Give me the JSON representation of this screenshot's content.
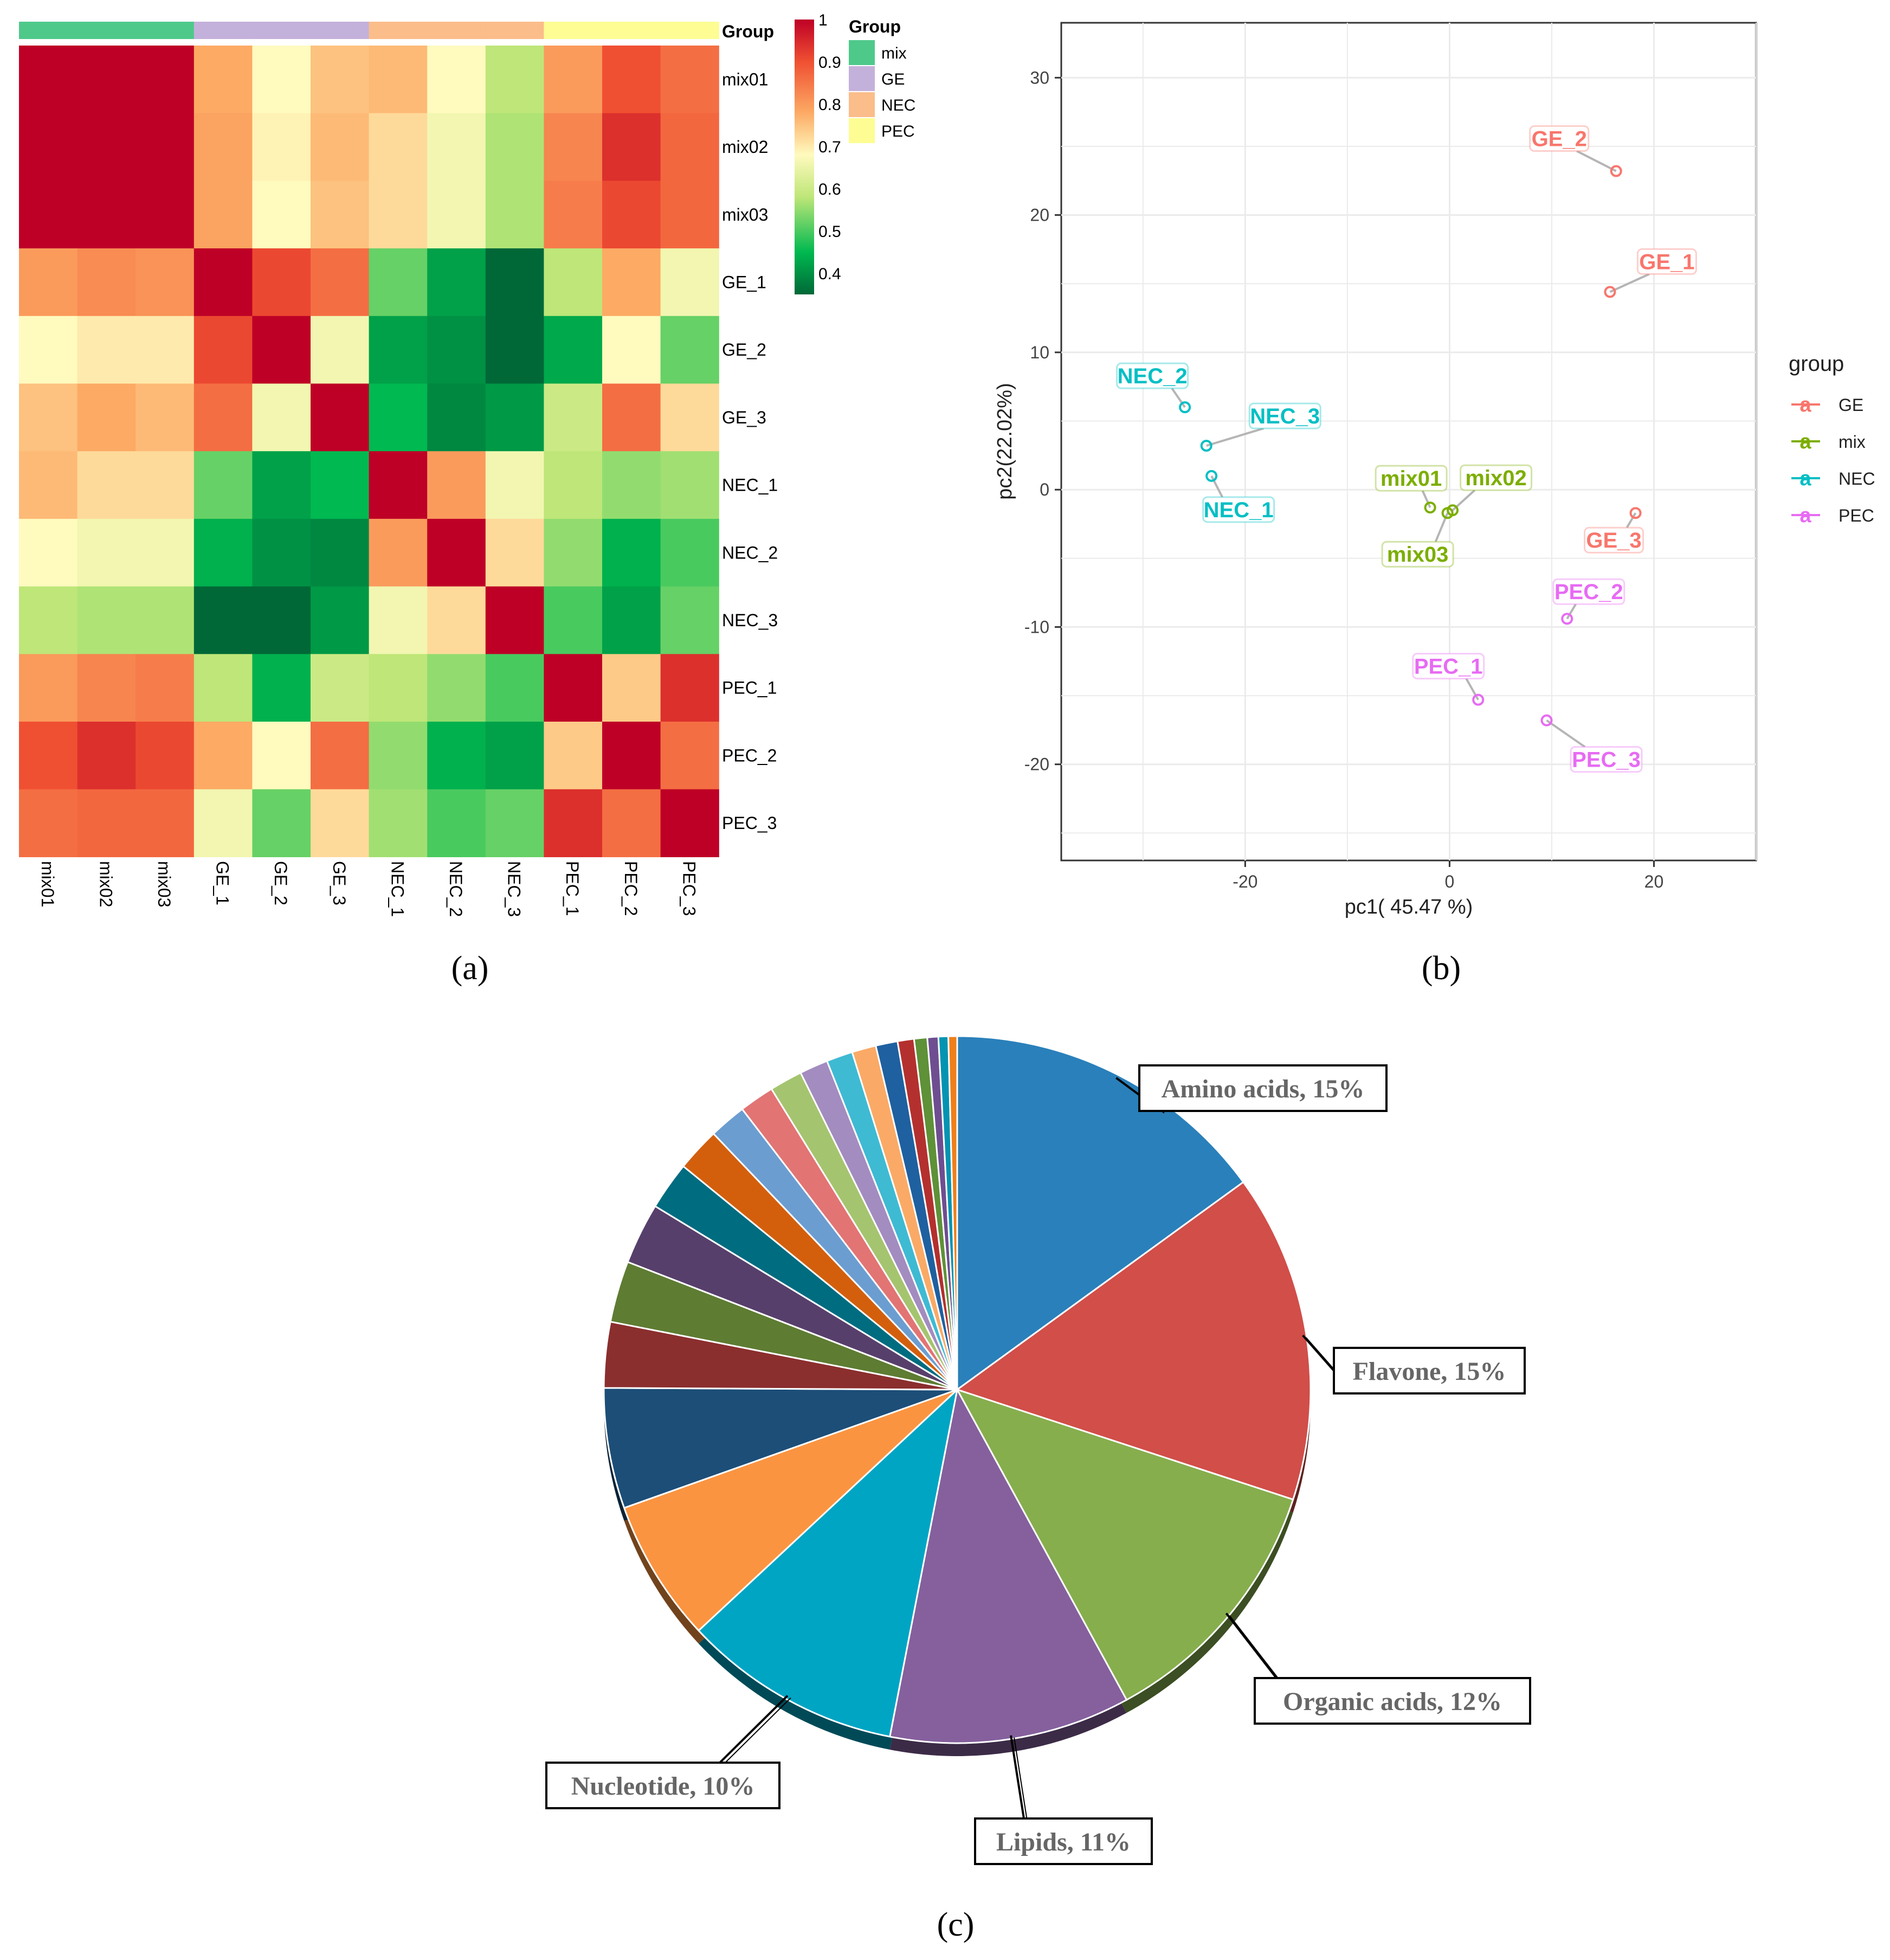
{
  "panel_labels": {
    "a": "(a)",
    "b": "(b)",
    "c": "(c)"
  },
  "colors": {
    "mix": "#4ec98a",
    "GE": "#c4b1db",
    "NEC": "#fbbd8a",
    "PEC": "#fdfd94",
    "pca_GE": "#f8766d",
    "pca_mix": "#7cae00",
    "pca_NEC": "#00bfc4",
    "pca_PEC": "#e76bf3"
  },
  "chart_data": [
    {
      "type": "heatmap",
      "panel": "a",
      "samples": [
        "mix01",
        "mix02",
        "mix03",
        "GE_1",
        "GE_2",
        "GE_3",
        "NEC_1",
        "NEC_2",
        "NEC_3",
        "PEC_1",
        "PEC_2",
        "PEC_3"
      ],
      "groups": [
        "mix",
        "mix",
        "mix",
        "GE",
        "GE",
        "GE",
        "NEC",
        "NEC",
        "NEC",
        "PEC",
        "PEC",
        "PEC"
      ],
      "annotation_title": "Group",
      "legend_title": "Group",
      "legend_entries": [
        "mix",
        "GE",
        "NEC",
        "PEC"
      ],
      "colorbar_ticks": [
        "1",
        "0.9",
        "0.8",
        "0.7",
        "0.6",
        "0.5",
        "0.4"
      ],
      "colorbar_range": [
        0.35,
        1.0
      ],
      "matrix": [
        [
          1.0,
          1.0,
          1.0,
          0.78,
          0.68,
          0.75,
          0.76,
          0.68,
          0.58,
          0.8,
          0.9,
          0.86
        ],
        [
          1.0,
          1.0,
          1.0,
          0.79,
          0.69,
          0.76,
          0.72,
          0.66,
          0.57,
          0.83,
          0.94,
          0.87
        ],
        [
          1.0,
          1.0,
          1.0,
          0.79,
          0.68,
          0.75,
          0.72,
          0.66,
          0.57,
          0.84,
          0.91,
          0.87
        ],
        [
          0.8,
          0.82,
          0.81,
          1.0,
          0.91,
          0.86,
          0.52,
          0.42,
          0.35,
          0.58,
          0.78,
          0.66
        ],
        [
          0.68,
          0.7,
          0.7,
          0.91,
          1.0,
          0.66,
          0.42,
          0.4,
          0.35,
          0.43,
          0.68,
          0.52
        ],
        [
          0.75,
          0.78,
          0.76,
          0.86,
          0.66,
          1.0,
          0.45,
          0.39,
          0.41,
          0.6,
          0.86,
          0.72
        ],
        [
          0.76,
          0.72,
          0.72,
          0.52,
          0.42,
          0.45,
          1.0,
          0.8,
          0.66,
          0.58,
          0.55,
          0.56
        ],
        [
          0.68,
          0.66,
          0.66,
          0.44,
          0.4,
          0.39,
          0.8,
          1.0,
          0.72,
          0.55,
          0.44,
          0.5
        ],
        [
          0.58,
          0.57,
          0.57,
          0.35,
          0.35,
          0.41,
          0.66,
          0.72,
          1.0,
          0.5,
          0.42,
          0.52
        ],
        [
          0.8,
          0.83,
          0.84,
          0.58,
          0.44,
          0.6,
          0.58,
          0.55,
          0.5,
          1.0,
          0.74,
          0.94
        ],
        [
          0.9,
          0.94,
          0.91,
          0.78,
          0.68,
          0.86,
          0.55,
          0.44,
          0.42,
          0.74,
          1.0,
          0.86
        ],
        [
          0.86,
          0.87,
          0.87,
          0.66,
          0.52,
          0.72,
          0.56,
          0.5,
          0.52,
          0.94,
          0.86,
          1.0
        ]
      ]
    },
    {
      "type": "scatter",
      "panel": "b",
      "xlabel": "pc1( 45.47 %)",
      "ylabel": "pc2(22.02%)",
      "xlim": [
        -38,
        30
      ],
      "ylim": [
        -27,
        34
      ],
      "xticks": [
        -20,
        0,
        20
      ],
      "yticks": [
        -20,
        -10,
        0,
        10,
        20,
        30
      ],
      "legend_title": "group",
      "legend_entries": [
        "GE",
        "mix",
        "NEC",
        "PEC"
      ],
      "points": [
        {
          "label": "GE_1",
          "group": "GE",
          "x": 15.7,
          "y": 14.4
        },
        {
          "label": "GE_2",
          "group": "GE",
          "x": 16.3,
          "y": 23.2
        },
        {
          "label": "GE_3",
          "group": "GE",
          "x": 18.2,
          "y": -1.7
        },
        {
          "label": "mix01",
          "group": "mix",
          "x": -1.9,
          "y": -1.3
        },
        {
          "label": "mix02",
          "group": "mix",
          "x": 0.3,
          "y": -1.5
        },
        {
          "label": "mix03",
          "group": "mix",
          "x": -0.2,
          "y": -1.7
        },
        {
          "label": "NEC_1",
          "group": "NEC",
          "x": -23.3,
          "y": 1.0
        },
        {
          "label": "NEC_2",
          "group": "NEC",
          "x": -25.9,
          "y": 6.0
        },
        {
          "label": "NEC_3",
          "group": "NEC",
          "x": -23.8,
          "y": 3.2
        },
        {
          "label": "PEC_1",
          "group": "PEC",
          "x": 2.8,
          "y": -15.3
        },
        {
          "label": "PEC_2",
          "group": "PEC",
          "x": 11.5,
          "y": -9.4
        },
        {
          "label": "PEC_3",
          "group": "PEC",
          "x": 9.5,
          "y": -16.8
        }
      ]
    },
    {
      "type": "pie",
      "panel": "c",
      "labeled_slices": [
        {
          "label": "Amino acids, 15%",
          "value": 15,
          "color": "#2a80ba"
        },
        {
          "label": "Flavone, 15%",
          "value": 15,
          "color": "#d14e49"
        },
        {
          "label": "Organic acids, 12%",
          "value": 12,
          "color": "#86ae4d"
        },
        {
          "label": "Lipids, 11%",
          "value": 11,
          "color": "#85609d"
        },
        {
          "label": "Nucleotide, 10%",
          "value": 10,
          "color": "#00a5c4"
        }
      ],
      "unlabeled_slices": [
        {
          "value": 6.5,
          "color": "#fa9441"
        },
        {
          "value": 5.5,
          "color": "#1c4e78"
        },
        {
          "value": 3.0,
          "color": "#8b2e2e"
        },
        {
          "value": 2.8,
          "color": "#5e7c32"
        },
        {
          "value": 2.8,
          "color": "#573f6b"
        },
        {
          "value": 2.2,
          "color": "#006c80"
        },
        {
          "value": 2.0,
          "color": "#d35f0d"
        },
        {
          "value": 1.7,
          "color": "#6b9dd1"
        },
        {
          "value": 1.6,
          "color": "#e27474"
        },
        {
          "value": 1.5,
          "color": "#a5c46f"
        },
        {
          "value": 1.3,
          "color": "#a38cbf"
        },
        {
          "value": 1.2,
          "color": "#3fbad3"
        },
        {
          "value": 1.1,
          "color": "#faaa66"
        },
        {
          "value": 1.0,
          "color": "#1f60a0"
        },
        {
          "value": 0.75,
          "color": "#b4302e"
        },
        {
          "value": 0.6,
          "color": "#5e9138"
        },
        {
          "value": 0.5,
          "color": "#6e4e91"
        },
        {
          "value": 0.45,
          "color": "#0494b2"
        },
        {
          "value": 0.4,
          "color": "#ef7f1a"
        }
      ]
    }
  ]
}
